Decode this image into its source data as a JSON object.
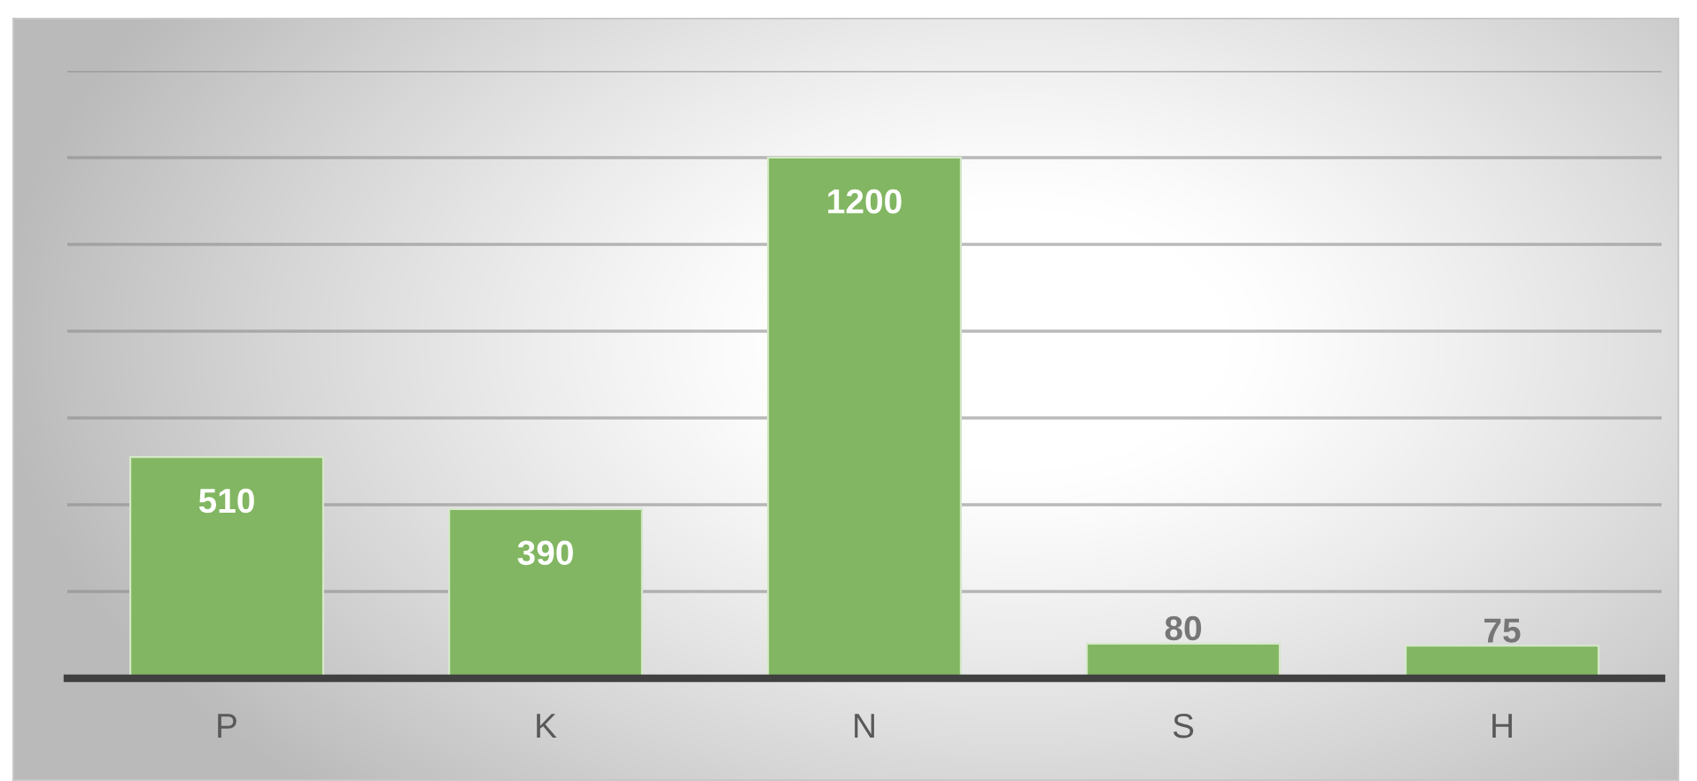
{
  "chart_data": {
    "type": "bar",
    "categories": [
      "P",
      "K",
      "N",
      "S",
      "H"
    ],
    "values": [
      510,
      390,
      1200,
      80,
      75
    ],
    "color": "#82b662",
    "ylim": [
      0,
      1400
    ],
    "yticks": [
      {
        "value": 0,
        "label": null
      },
      {
        "value": 200,
        "label": null
      },
      {
        "value": 400,
        "label": null
      },
      {
        "value": 600,
        "label": null
      },
      {
        "value": 800,
        "label": null
      },
      {
        "value": 1000,
        "label": null
      },
      {
        "value": 1200,
        "label": null
      },
      {
        "value": 1400,
        "label": null
      }
    ],
    "tick_labels": "x",
    "grid": "y",
    "data_labels": true
  }
}
